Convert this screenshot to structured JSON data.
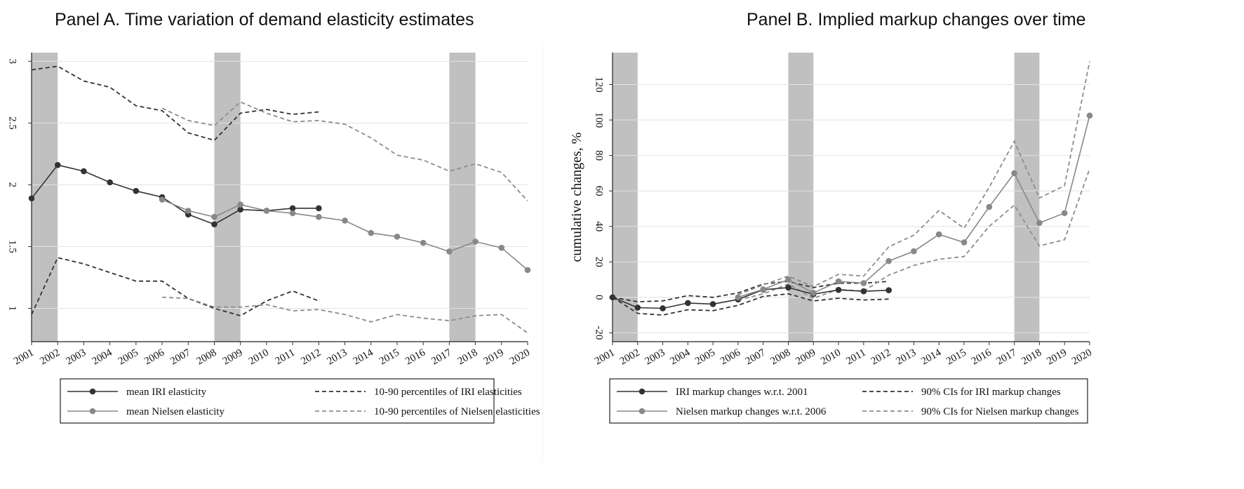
{
  "chart_data": [
    {
      "type": "line",
      "title": "Panel A. Time variation of demand elasticity estimates",
      "xlabel": "",
      "ylabel": "",
      "ylim": [
        0.73,
        3.07
      ],
      "yticks": [
        1,
        1.5,
        2,
        2.5,
        3
      ],
      "ytick_labels": [
        "1",
        "1.5",
        "2",
        "2.5",
        "3"
      ],
      "x": [
        2001,
        2002,
        2003,
        2004,
        2005,
        2006,
        2007,
        2008,
        2009,
        2010,
        2011,
        2012,
        2013,
        2014,
        2015,
        2016,
        2017,
        2018,
        2019,
        2020
      ],
      "grid": "horizontal",
      "shaded_periods": [
        [
          2001,
          2002
        ],
        [
          2008,
          2009
        ],
        [
          2017,
          2018
        ]
      ],
      "legend_position": "bottom",
      "series": [
        {
          "name": "mean IRI elasticity",
          "style": "solid-marker",
          "color": "#333333",
          "x": [
            2001,
            2002,
            2003,
            2004,
            2005,
            2006,
            2007,
            2008,
            2009,
            2010,
            2011,
            2012
          ],
          "values": [
            1.89,
            2.16,
            2.11,
            2.02,
            1.95,
            1.9,
            1.76,
            1.68,
            1.8,
            1.79,
            1.81,
            1.81
          ]
        },
        {
          "name": "mean Nielsen elasticity",
          "style": "solid-marker",
          "color": "#888888",
          "x": [
            2006,
            2007,
            2008,
            2009,
            2010,
            2011,
            2012,
            2013,
            2014,
            2015,
            2016,
            2017,
            2018,
            2019,
            2020
          ],
          "values": [
            1.88,
            1.79,
            1.74,
            1.84,
            1.79,
            1.77,
            1.74,
            1.71,
            1.61,
            1.58,
            1.53,
            1.46,
            1.54,
            1.49,
            1.31
          ]
        },
        {
          "name": "10-90 percentiles of IRI elasticities",
          "style": "dashed",
          "color": "#333333",
          "x": [
            2001,
            2002,
            2003,
            2004,
            2005,
            2006,
            2007,
            2008,
            2009,
            2010,
            2011,
            2012
          ],
          "values": [
            2.93,
            2.96,
            2.84,
            2.79,
            2.64,
            2.6,
            2.42,
            2.36,
            2.58,
            2.61,
            2.57,
            2.59
          ]
        },
        {
          "name": "",
          "style": "dashed",
          "color": "#333333",
          "x": [
            2001,
            2002,
            2003,
            2004,
            2005,
            2006,
            2007,
            2008,
            2009,
            2010,
            2011,
            2012
          ],
          "values": [
            0.95,
            1.41,
            1.36,
            1.29,
            1.22,
            1.22,
            1.08,
            1.0,
            0.94,
            1.06,
            1.14,
            1.06
          ]
        },
        {
          "name": "10-90 percentiles of Nielsen elasticities",
          "style": "dashed",
          "color": "#8c8c8c",
          "x": [
            2006,
            2007,
            2008,
            2009,
            2010,
            2011,
            2012,
            2013,
            2014,
            2015,
            2016,
            2017,
            2018,
            2019,
            2020
          ],
          "values": [
            2.62,
            2.52,
            2.48,
            2.67,
            2.58,
            2.51,
            2.52,
            2.49,
            2.38,
            2.24,
            2.2,
            2.11,
            2.17,
            2.1,
            1.87
          ]
        },
        {
          "name": "",
          "style": "dashed",
          "color": "#8c8c8c",
          "x": [
            2006,
            2007,
            2008,
            2009,
            2010,
            2011,
            2012,
            2013,
            2014,
            2015,
            2016,
            2017,
            2018,
            2019,
            2020
          ],
          "values": [
            1.09,
            1.08,
            1.01,
            1.01,
            1.03,
            0.98,
            0.99,
            0.95,
            0.89,
            0.95,
            0.92,
            0.9,
            0.94,
            0.95,
            0.8
          ]
        }
      ],
      "legend": [
        {
          "label": "mean IRI elasticity",
          "series": 0
        },
        {
          "label": "10-90 percentiles of IRI elasticities",
          "series": 2
        },
        {
          "label": "mean Nielsen elasticity",
          "series": 1
        },
        {
          "label": "10-90 percentiles of Nielsen elasticities",
          "series": 4
        }
      ]
    },
    {
      "type": "line",
      "title": "Panel B. Implied markup changes over time",
      "xlabel": "",
      "ylabel": "cumulative changes, %",
      "ylim": [
        -25,
        138
      ],
      "yticks": [
        -20,
        0,
        20,
        40,
        60,
        80,
        100,
        120
      ],
      "ytick_labels": [
        "-20",
        "0",
        "20",
        "40",
        "60",
        "80",
        "100",
        "120"
      ],
      "x": [
        2001,
        2002,
        2003,
        2004,
        2005,
        2006,
        2007,
        2008,
        2009,
        2010,
        2011,
        2012,
        2013,
        2014,
        2015,
        2016,
        2017,
        2018,
        2019,
        2020
      ],
      "grid": "horizontal",
      "shaded_periods": [
        [
          2001,
          2002
        ],
        [
          2008,
          2009
        ],
        [
          2017,
          2018
        ]
      ],
      "legend_position": "bottom",
      "series": [
        {
          "name": "IRI markup changes w.r.t. 2001",
          "style": "solid-marker",
          "color": "#333333",
          "x": [
            2001,
            2002,
            2003,
            2004,
            2005,
            2006,
            2007,
            2008,
            2009,
            2010,
            2011,
            2012
          ],
          "values": [
            0,
            -5.8,
            -6.2,
            -3.2,
            -3.8,
            -1.2,
            4.3,
            5.5,
            1.8,
            4.2,
            3.4,
            4.0
          ]
        },
        {
          "name": "Nielsen markup changes w.r.t. 2006",
          "style": "solid-marker",
          "color": "#888888",
          "x": [
            2006,
            2007,
            2008,
            2009,
            2010,
            2011,
            2012,
            2013,
            2014,
            2015,
            2016,
            2017,
            2018,
            2019,
            2020
          ],
          "values": [
            0,
            4.5,
            10.0,
            2.5,
            9.0,
            8.0,
            20.5,
            26.0,
            35.5,
            31.0,
            51.0,
            70.0,
            42.0,
            47.5,
            102.5
          ]
        },
        {
          "name": "90% CIs for IRI markup changes",
          "style": "dashed",
          "color": "#333333",
          "x": [
            2001,
            2002,
            2003,
            2004,
            2005,
            2006,
            2007,
            2008,
            2009,
            2010,
            2011,
            2012
          ],
          "values": [
            0,
            -2.5,
            -2.0,
            1.0,
            0.0,
            2.5,
            7.5,
            9.0,
            5.5,
            8.0,
            8.0,
            9.0
          ]
        },
        {
          "name": "",
          "style": "dashed",
          "color": "#333333",
          "x": [
            2001,
            2002,
            2003,
            2004,
            2005,
            2006,
            2007,
            2008,
            2009,
            2010,
            2011,
            2012
          ],
          "values": [
            0,
            -9.0,
            -10.0,
            -7.0,
            -7.5,
            -4.5,
            0.5,
            2.0,
            -2.0,
            -0.5,
            -1.5,
            -1.0
          ]
        },
        {
          "name": "90% CIs for Nielsen markup changes",
          "style": "dashed",
          "color": "#8c8c8c",
          "x": [
            2006,
            2007,
            2008,
            2009,
            2010,
            2011,
            2012,
            2013,
            2014,
            2015,
            2016,
            2017,
            2018,
            2019,
            2020
          ],
          "values": [
            1.5,
            7.0,
            12.0,
            6.0,
            13.0,
            12.0,
            28.5,
            35.0,
            49.0,
            39.0,
            62.0,
            88.0,
            56.0,
            63.0,
            133.0
          ]
        },
        {
          "name": "",
          "style": "dashed",
          "color": "#8c8c8c",
          "x": [
            2006,
            2007,
            2008,
            2009,
            2010,
            2011,
            2012,
            2013,
            2014,
            2015,
            2016,
            2017,
            2018,
            2019,
            2020
          ],
          "values": [
            -1.5,
            2.0,
            7.5,
            -0.5,
            4.5,
            3.5,
            12.5,
            18.0,
            21.5,
            23.0,
            40.0,
            52.0,
            29.0,
            32.5,
            72.5
          ]
        }
      ],
      "legend": [
        {
          "label": "IRI markup changes w.r.t. 2001",
          "series": 0
        },
        {
          "label": "90% CIs for IRI markup changes",
          "series": 2
        },
        {
          "label": "Nielsen markup changes w.r.t. 2006",
          "series": 1
        },
        {
          "label": "90% CIs for Nielsen markup changes",
          "series": 4
        }
      ]
    }
  ]
}
